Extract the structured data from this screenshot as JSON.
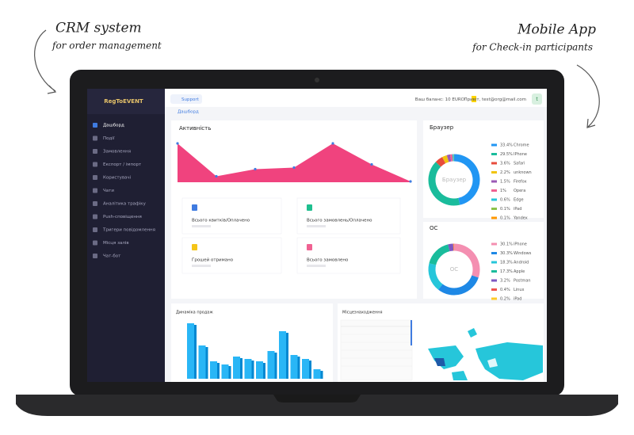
{
  "annotations": {
    "left": {
      "title": "CRM system",
      "subtitle": "for order management"
    },
    "right": {
      "title": "Mobile App",
      "subtitle": "for Check-in participants"
    }
  },
  "sidebar": {
    "logo": "RegToEVENT",
    "active": 0,
    "menu": [
      "Дашборд",
      "Події",
      "Замовлення",
      "Експорт / імпорт",
      "Користувачі",
      "Чати",
      "Аналітика трафіку",
      "Push-сповіщення",
      "Тригери повідомлення",
      "Місця залів",
      "Чат-бот"
    ]
  },
  "topbar": {
    "support": "Support",
    "balance": "Ваш баланс: 10 EURO",
    "user": "Привіт, test@org@mail.com",
    "avatar": "t"
  },
  "breadcrumb": "Дашборд",
  "activity": {
    "title": "Активність",
    "color": "#f0437e",
    "values": [
      98,
      15,
      33,
      37,
      98,
      45,
      2
    ]
  },
  "stats": [
    {
      "label": "Всього квитків/Оплачено",
      "color": "#3f7be0"
    },
    {
      "label": "Всього замовлень/Оплачено",
      "color": "#1fbf8f"
    },
    {
      "label": "Грошей отримано",
      "color": "#f5c518"
    },
    {
      "label": "Всього замовлено",
      "color": "#f06292"
    }
  ],
  "browser": {
    "title": "Браузер",
    "center": "Браузер",
    "items": [
      {
        "label": "33.4%",
        "name": "Chrome",
        "value": 33.4,
        "color": "#2196f3"
      },
      {
        "label": "29.5%",
        "name": "IPhone",
        "value": 29.5,
        "color": "#1abc9c"
      },
      {
        "label": "3.6%",
        "name": "Safari",
        "value": 3.6,
        "color": "#e74c3c"
      },
      {
        "label": "2.2%",
        "name": "unknown",
        "value": 2.2,
        "color": "#f1c40f"
      },
      {
        "label": "1.5%",
        "name": "Firefox",
        "value": 1.5,
        "color": "#9b59b6"
      },
      {
        "label": "1%",
        "name": "Opera",
        "value": 1,
        "color": "#f06292"
      },
      {
        "label": "0.6%",
        "name": "Edge",
        "value": 0.6,
        "color": "#26c6da"
      },
      {
        "label": "0.1%",
        "name": "iPad",
        "value": 0.1,
        "color": "#8bc34a"
      },
      {
        "label": "0.1%",
        "name": "Yandex",
        "value": 0.1,
        "color": "#ff9800"
      }
    ]
  },
  "os": {
    "title": "ОС",
    "center": "ОС",
    "items": [
      {
        "label": "30.1%",
        "name": "iPhone",
        "value": 30.1,
        "color": "#f48fb1"
      },
      {
        "label": "30.3%",
        "name": "Windows",
        "value": 30.3,
        "color": "#1e88e5"
      },
      {
        "label": "18.3%",
        "name": "Android",
        "value": 18.3,
        "color": "#26c6da"
      },
      {
        "label": "17.3%",
        "name": "Apple",
        "value": 17.3,
        "color": "#1abc9c"
      },
      {
        "label": "3.2%",
        "name": "Postman",
        "value": 3.2,
        "color": "#7e57c2"
      },
      {
        "label": "0.4%",
        "name": "Linux",
        "value": 0.4,
        "color": "#ef5350"
      },
      {
        "label": "0.2%",
        "name": "iPad",
        "value": 0.2,
        "color": "#ffca28"
      }
    ]
  },
  "sales": {
    "title": "Динаміка продаж",
    "color": "#29b6f6",
    "values": [
      70,
      42,
      22,
      18,
      28,
      25,
      22,
      35,
      60,
      30,
      25,
      12
    ]
  },
  "location": {
    "title": "Місцезнаходження"
  }
}
